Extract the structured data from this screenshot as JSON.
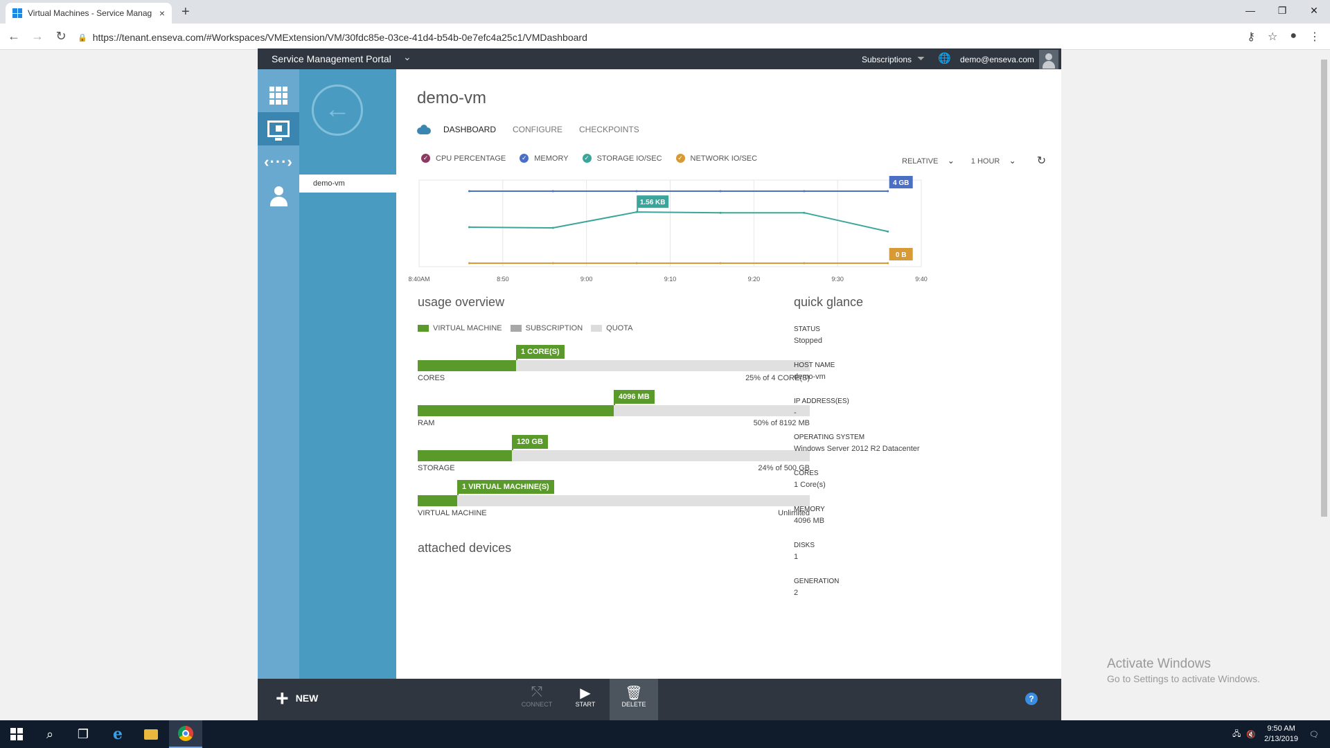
{
  "browser": {
    "tab_title": "Virtual Machines - Service Manag",
    "tab_close": "×",
    "new_tab": "+",
    "url": "https://tenant.enseva.com/#Workspaces/VMExtension/VM/30fdc85e-03ce-41d4-b54b-0e7efc4a25c1/VMDashboard",
    "window_controls": [
      "—",
      "❐",
      "✕"
    ]
  },
  "portal": {
    "brand": "Service Management Portal",
    "subscriptions_label": "Subscriptions",
    "user_email": "demo@enseva.com"
  },
  "nav": {
    "selected_item": "demo-vm"
  },
  "vm": {
    "title": "demo-vm",
    "tabs": [
      "DASHBOARD",
      "CONFIGURE",
      "CHECKPOINTS"
    ]
  },
  "metrics": {
    "series": [
      {
        "name": "CPU PERCENTAGE",
        "color": "#8b3a62"
      },
      {
        "name": "MEMORY",
        "color": "#4a6fc4"
      },
      {
        "name": "STORAGE IO/SEC",
        "color": "#3aa59a"
      },
      {
        "name": "NETWORK IO/SEC",
        "color": "#d79a35"
      }
    ],
    "range_mode": "RELATIVE",
    "range_period": "1 HOUR"
  },
  "chart_data": {
    "type": "line",
    "x_ticks": [
      "8:40AM",
      "8:50",
      "9:00",
      "9:10",
      "9:20",
      "9:30",
      "9:40"
    ],
    "series": [
      {
        "name": "MEMORY",
        "color": "#4a6fc4",
        "x": [
          "8:46",
          "8:56",
          "9:06",
          "9:16",
          "9:26",
          "9:36"
        ],
        "values": [
          1.0,
          1.0,
          1.0,
          1.0,
          1.0,
          1.0
        ],
        "end_label": "4 GB"
      },
      {
        "name": "STORAGE IO/SEC",
        "color": "#3aa59a",
        "x": [
          "8:46",
          "8:56",
          "9:06",
          "9:16",
          "9:26",
          "9:36"
        ],
        "values": [
          0.5,
          0.49,
          0.71,
          0.7,
          0.7,
          0.44
        ]
      },
      {
        "name": "NETWORK IO/SEC",
        "color": "#d79a35",
        "x": [
          "8:46",
          "8:56",
          "9:06",
          "9:16",
          "9:26",
          "9:36"
        ],
        "values": [
          0,
          0,
          0,
          0,
          0,
          0
        ],
        "end_label": "0 B"
      }
    ],
    "callout": {
      "x": "9:06",
      "series": "STORAGE IO/SEC",
      "label": "1.56 KB"
    },
    "grid": true
  },
  "usage": {
    "heading": "usage overview",
    "legend": [
      {
        "label": "VIRTUAL MACHINE",
        "color": "#5a9a2a"
      },
      {
        "label": "SUBSCRIPTION",
        "color": "#a8a8a8"
      },
      {
        "label": "QUOTA",
        "color": "#dcdcdc"
      }
    ],
    "bars": [
      {
        "label": "CORES",
        "flag": "1 CORE(S)",
        "pct": 25,
        "pct_text": "25%",
        "of_text": " of 4 CORE(S)"
      },
      {
        "label": "RAM",
        "flag": "4096 MB",
        "pct": 50,
        "pct_text": "50%",
        "of_text": " of 8192 MB"
      },
      {
        "label": "STORAGE",
        "flag": "120 GB",
        "pct": 24,
        "pct_text": "24%",
        "of_text": " of 500 GB"
      },
      {
        "label": "VIRTUAL MACHINE",
        "flag": "1 VIRTUAL MACHINE(S)",
        "pct": 10,
        "pct_text": "",
        "of_text": "Unlimited"
      }
    ]
  },
  "attached_devices": {
    "heading": "attached devices"
  },
  "quick_glance": {
    "heading": "quick glance",
    "items": [
      {
        "key": "STATUS",
        "value": "Stopped"
      },
      {
        "key": "HOST NAME",
        "value": "demo-vm"
      },
      {
        "key": "IP ADDRESS(ES)",
        "value": "-"
      },
      {
        "key": "OPERATING SYSTEM",
        "value": "Windows Server 2012 R2 Datacenter"
      },
      {
        "key": "CORES",
        "value": "1 Core(s)"
      },
      {
        "key": "MEMORY",
        "value": "4096 MB"
      },
      {
        "key": "DISKS",
        "value": "1"
      },
      {
        "key": "GENERATION",
        "value": "2"
      }
    ]
  },
  "commands": {
    "new_label": "NEW",
    "connect": "CONNECT",
    "start": "START",
    "delete": "DELETE",
    "help": "?"
  },
  "watermark": {
    "line1": "Activate Windows",
    "line2": "Go to Settings to activate Windows."
  },
  "taskbar": {
    "time": "9:50 AM",
    "date": "2/13/2019"
  }
}
